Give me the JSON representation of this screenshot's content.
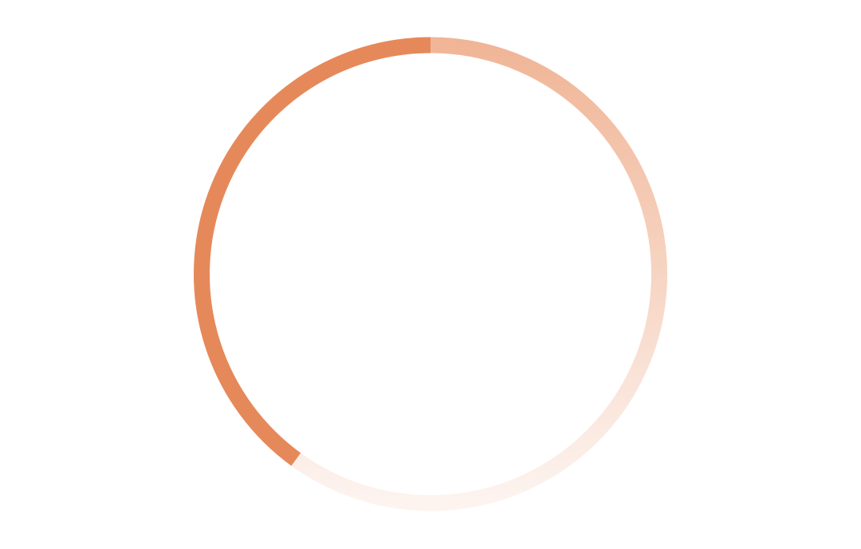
{
  "loader": {
    "progress_percent": 40,
    "colors": {
      "accent": "#e6895a",
      "track_start": "#f0b596",
      "track_end": "#fdf4f0",
      "background": "#ffffff"
    }
  }
}
